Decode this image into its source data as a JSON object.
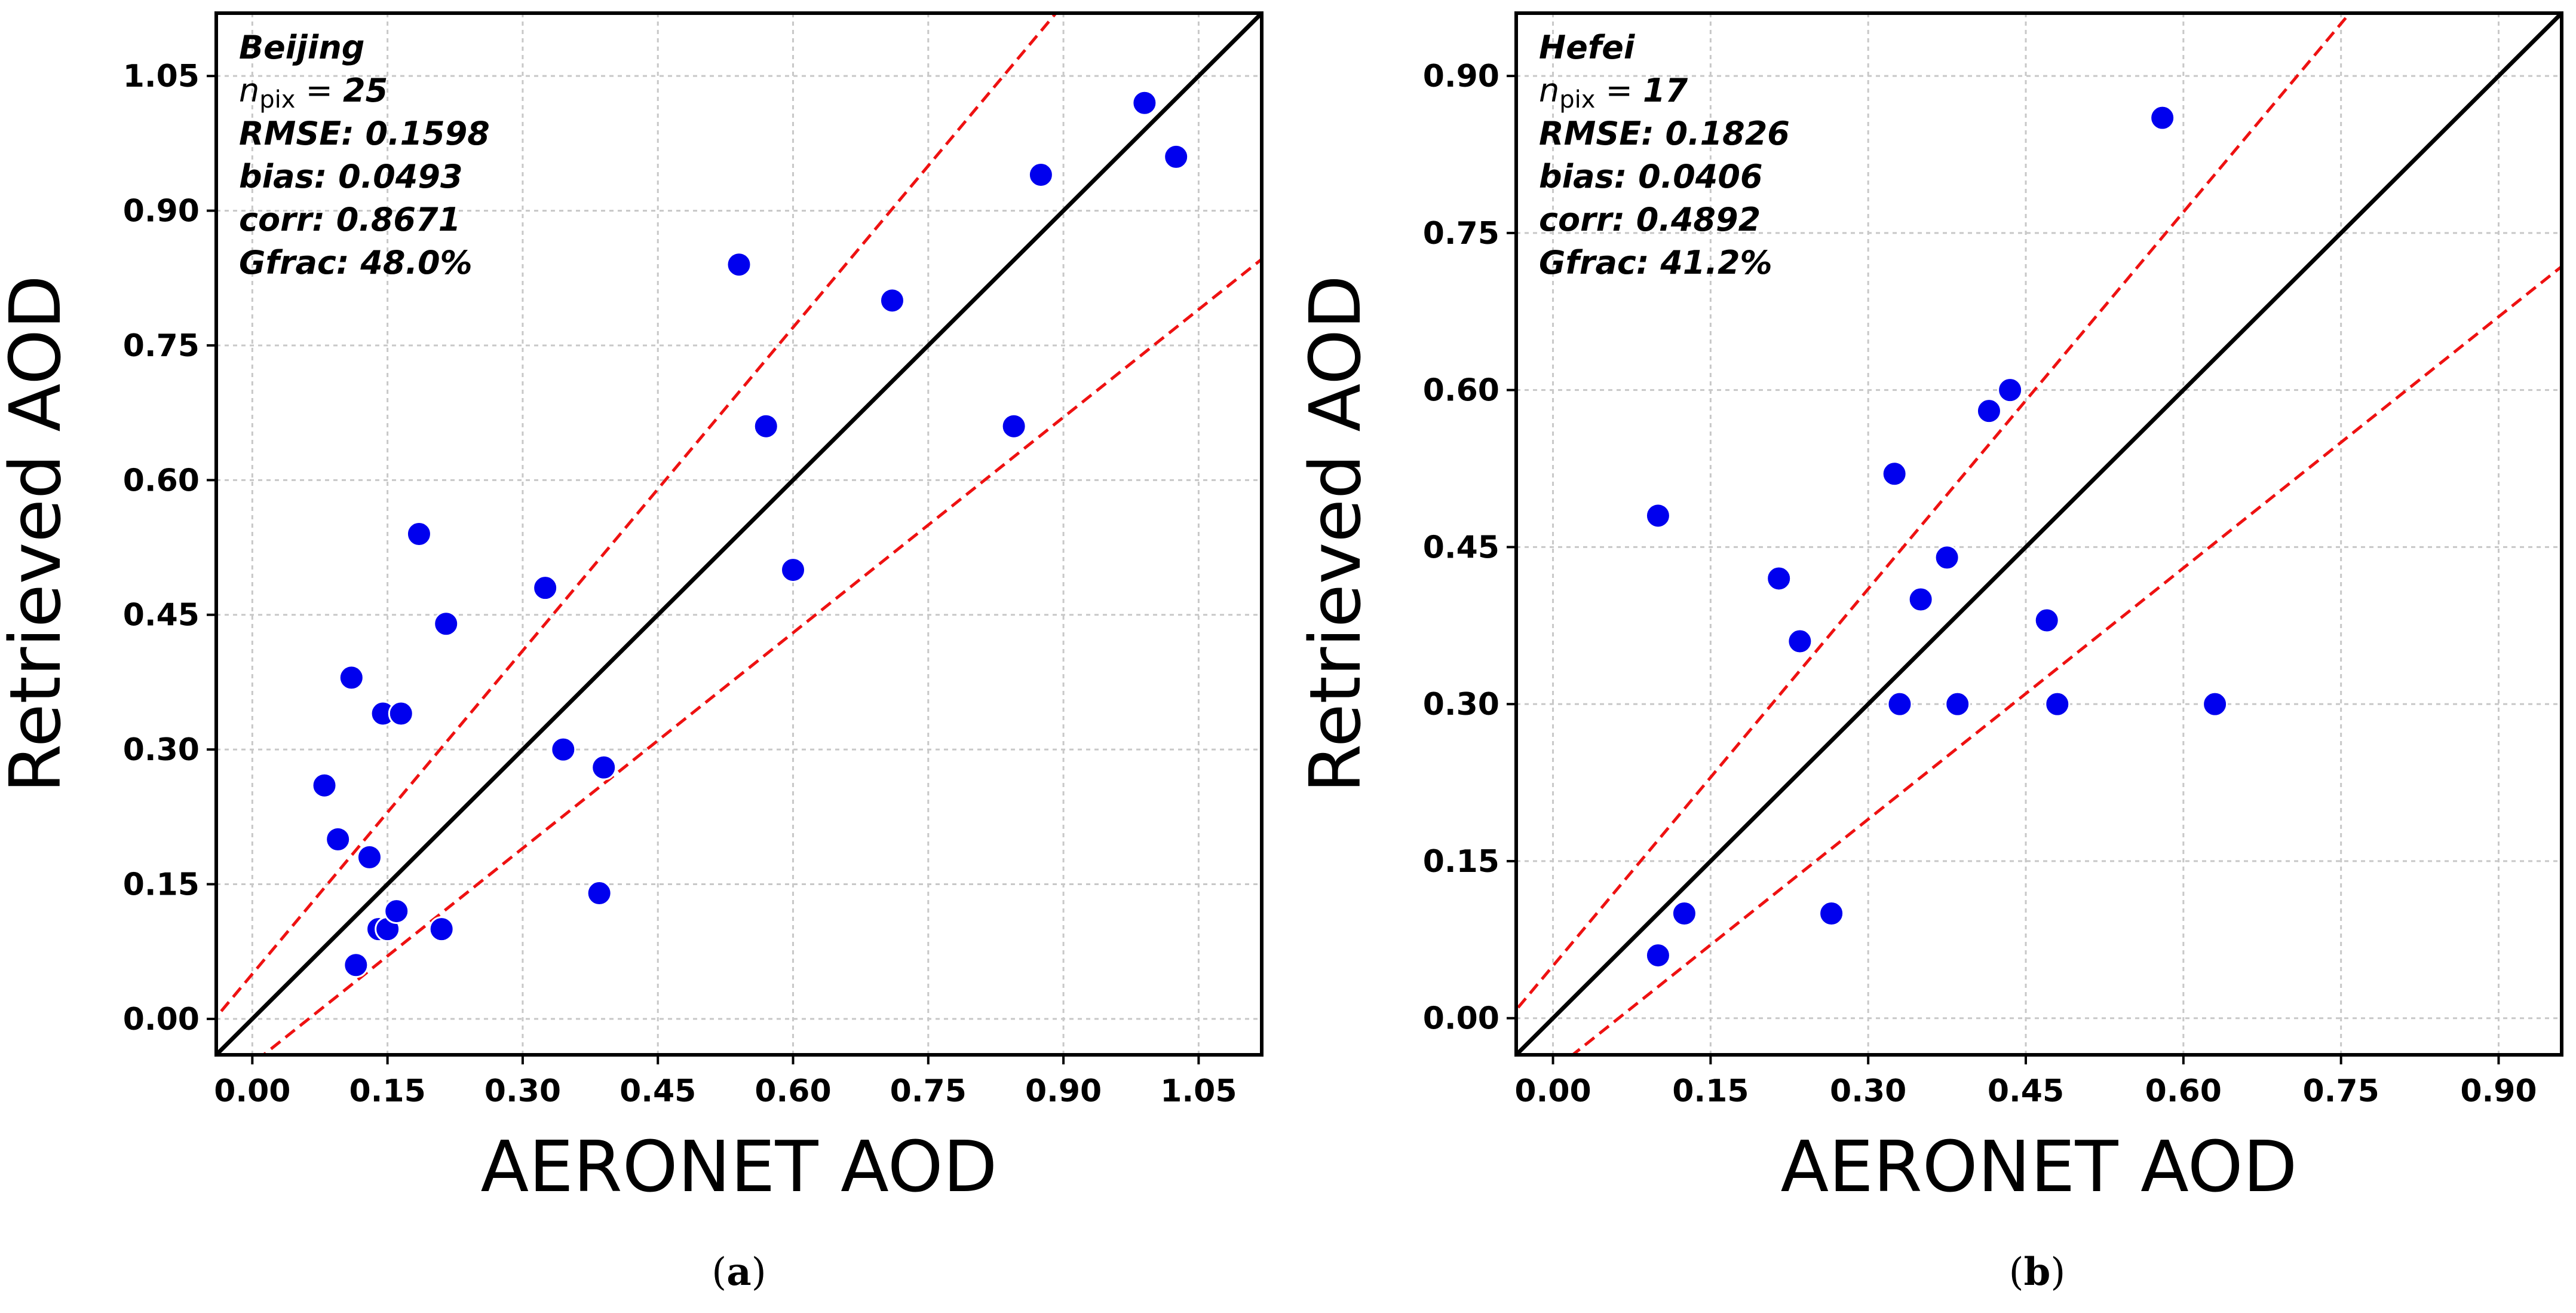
{
  "chart_data": [
    {
      "type": "scatter",
      "panel_label": "a",
      "station": "Beijing",
      "stats": {
        "n_symbol": "n",
        "n_sub": "pix",
        "n_value": "25",
        "rmse": "RMSE: 0.1598",
        "bias": "bias: 0.0493",
        "corr": "corr: 0.8671",
        "gfrac": "Gfrac: 48.0%"
      },
      "xlabel": "AERONET AOD",
      "ylabel": "Retrieved AOD",
      "xlim": [
        -0.04,
        1.12
      ],
      "ylim": [
        -0.04,
        1.12
      ],
      "ticks": [
        0.0,
        0.15,
        0.3,
        0.45,
        0.6,
        0.75,
        0.9,
        1.05
      ],
      "tick_labels": [
        "0.00",
        "0.15",
        "0.30",
        "0.45",
        "0.60",
        "0.75",
        "0.90",
        "1.05"
      ],
      "grid": true,
      "one_to_one_line": true,
      "envelope": {
        "offset": 0.05,
        "factor": 0.2,
        "color": "#ee1111",
        "style": "dashed"
      },
      "point_color": "#0000ee",
      "x": [
        0.08,
        0.095,
        0.11,
        0.115,
        0.13,
        0.14,
        0.145,
        0.15,
        0.16,
        0.165,
        0.185,
        0.21,
        0.215,
        0.325,
        0.345,
        0.385,
        0.39,
        0.54,
        0.57,
        0.6,
        0.71,
        0.845,
        0.875,
        0.99,
        1.025
      ],
      "y": [
        0.26,
        0.2,
        0.38,
        0.06,
        0.18,
        0.1,
        0.34,
        0.1,
        0.12,
        0.34,
        0.54,
        0.1,
        0.44,
        0.48,
        0.3,
        0.14,
        0.28,
        0.84,
        0.66,
        0.5,
        0.8,
        0.66,
        0.94,
        1.02,
        0.96
      ]
    },
    {
      "type": "scatter",
      "panel_label": "b",
      "station": "Hefei",
      "stats": {
        "n_symbol": "n",
        "n_sub": "pix",
        "n_value": "17",
        "rmse": "RMSE: 0.1826",
        "bias": "bias: 0.0406",
        "corr": "corr: 0.4892",
        "gfrac": "Gfrac: 41.2%"
      },
      "xlabel": "AERONET AOD",
      "ylabel": "Retrieved AOD",
      "xlim": [
        -0.035,
        0.96
      ],
      "ylim": [
        -0.035,
        0.96
      ],
      "ticks": [
        0.0,
        0.15,
        0.3,
        0.45,
        0.6,
        0.75,
        0.9
      ],
      "tick_labels": [
        "0.00",
        "0.15",
        "0.30",
        "0.45",
        "0.60",
        "0.75",
        "0.90"
      ],
      "grid": true,
      "one_to_one_line": true,
      "envelope": {
        "offset": 0.05,
        "factor": 0.2,
        "color": "#ee1111",
        "style": "dashed"
      },
      "point_color": "#0000ee",
      "x": [
        0.1,
        0.1,
        0.125,
        0.215,
        0.235,
        0.265,
        0.325,
        0.33,
        0.35,
        0.375,
        0.385,
        0.415,
        0.435,
        0.47,
        0.48,
        0.58,
        0.63
      ],
      "y": [
        0.06,
        0.48,
        0.1,
        0.42,
        0.36,
        0.1,
        0.52,
        0.3,
        0.4,
        0.44,
        0.3,
        0.58,
        0.6,
        0.38,
        0.3,
        0.86,
        0.3
      ]
    }
  ]
}
